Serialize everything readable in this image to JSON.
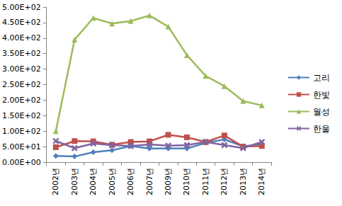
{
  "chart_data": {
    "type": "line",
    "categories": [
      "2002년",
      "2003년",
      "2004년",
      "2005년",
      "2006년",
      "2007년",
      "2009년",
      "2010년",
      "2011년",
      "2012년",
      "2013년",
      "2014년"
    ],
    "series": [
      {
        "name": "고리",
        "color": "#4f81bd",
        "marker": "diamond",
        "values": [
          20,
          18,
          32,
          38,
          52,
          44,
          44,
          44,
          62,
          73,
          51,
          58
        ]
      },
      {
        "name": "한빛",
        "color": "#c0504d",
        "marker": "square",
        "values": [
          48,
          68,
          67,
          56,
          65,
          67,
          88,
          80,
          65,
          86,
          50,
          52
        ]
      },
      {
        "name": "월성",
        "color": "#9bbb59",
        "marker": "triangle",
        "values": [
          100,
          395,
          465,
          447,
          455,
          473,
          437,
          345,
          278,
          245,
          197,
          183
        ]
      },
      {
        "name": "한울",
        "color": "#8064a2",
        "marker": "x",
        "values": [
          68,
          45,
          60,
          55,
          52,
          57,
          53,
          55,
          65,
          55,
          45,
          65
        ]
      }
    ],
    "ylim": [
      0,
      500
    ],
    "yticks": [
      {
        "value": 0,
        "label": "0.00E+00"
      },
      {
        "value": 50,
        "label": "5.00E+01"
      },
      {
        "value": 100,
        "label": "1.00E+02"
      },
      {
        "value": 150,
        "label": "1.50E+02"
      },
      {
        "value": 200,
        "label": "2.00E+02"
      },
      {
        "value": 250,
        "label": "2.50E+02"
      },
      {
        "value": 300,
        "label": "3.00E+02"
      },
      {
        "value": 350,
        "label": "3.50E+02"
      },
      {
        "value": 400,
        "label": "4.00E+02"
      },
      {
        "value": 450,
        "label": "4.50E+02"
      },
      {
        "value": 500,
        "label": "5.00E+02"
      }
    ],
    "grid": false,
    "legend": "right"
  }
}
